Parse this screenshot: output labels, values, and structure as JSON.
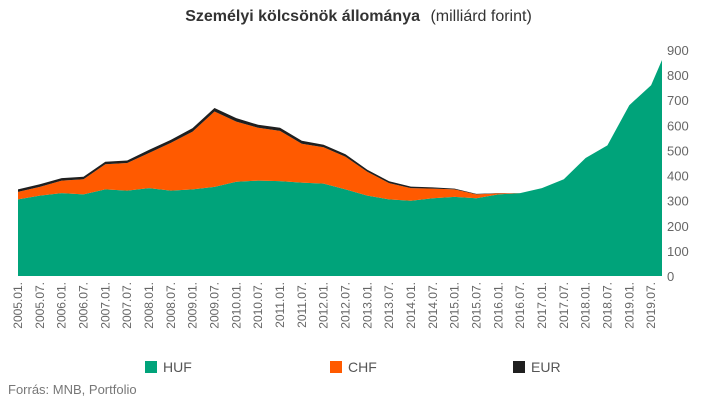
{
  "chart_data": {
    "type": "area",
    "stacked": true,
    "title": "Személyi kölcsönök állománya",
    "unit_label": "(milliárd forint)",
    "y_axis": {
      "position": "right",
      "min": 0,
      "max": 900,
      "ticks": [
        0,
        100,
        200,
        300,
        400,
        500,
        600,
        700,
        800,
        900
      ]
    },
    "x_axis": {
      "first": "2005.01",
      "last": "2019.10",
      "label_rotation": -90,
      "tick_labels": [
        "2005.01.",
        "2005.07.",
        "2006.01.",
        "2006.07.",
        "2007.01.",
        "2007.07.",
        "2008.01.",
        "2008.07.",
        "2009.01.",
        "2009.07.",
        "2010.01.",
        "2010.07.",
        "2011.01.",
        "2011.07.",
        "2012.01.",
        "2012.07.",
        "2013.01.",
        "2013.07.",
        "2014.01.",
        "2014.07.",
        "2015.01.",
        "2015.07.",
        "2016.01.",
        "2016.07.",
        "2017.01.",
        "2017.07.",
        "2018.01.",
        "2018.07.",
        "2019.01.",
        "2019.07."
      ]
    },
    "grid": false,
    "legend_placement": "bottom",
    "series": [
      {
        "name": "HUF",
        "color": "#00A37A",
        "points": [
          [
            "2005.01",
            305
          ],
          [
            "2005.07",
            320
          ],
          [
            "2006.01",
            330
          ],
          [
            "2006.07",
            325
          ],
          [
            "2007.01",
            345
          ],
          [
            "2007.07",
            340
          ],
          [
            "2008.01",
            350
          ],
          [
            "2008.07",
            340
          ],
          [
            "2009.01",
            345
          ],
          [
            "2009.07",
            355
          ],
          [
            "2010.01",
            375
          ],
          [
            "2010.07",
            380
          ],
          [
            "2011.01",
            378
          ],
          [
            "2011.07",
            372
          ],
          [
            "2012.01",
            368
          ],
          [
            "2012.07",
            345
          ],
          [
            "2013.01",
            320
          ],
          [
            "2013.07",
            305
          ],
          [
            "2014.01",
            300
          ],
          [
            "2014.07",
            310
          ],
          [
            "2015.01",
            315
          ],
          [
            "2015.07",
            310
          ],
          [
            "2016.01",
            325
          ],
          [
            "2016.07",
            330
          ],
          [
            "2017.01",
            350
          ],
          [
            "2017.07",
            385
          ],
          [
            "2018.01",
            470
          ],
          [
            "2018.07",
            520
          ],
          [
            "2019.01",
            680
          ],
          [
            "2019.07",
            760
          ],
          [
            "2019.10",
            860
          ]
        ]
      },
      {
        "name": "CHF",
        "color": "#FF5A00",
        "points": [
          [
            "2005.01",
            30
          ],
          [
            "2005.07",
            35
          ],
          [
            "2006.01",
            50
          ],
          [
            "2006.07",
            60
          ],
          [
            "2007.01",
            100
          ],
          [
            "2007.07",
            110
          ],
          [
            "2008.01",
            140
          ],
          [
            "2008.07",
            190
          ],
          [
            "2009.01",
            230
          ],
          [
            "2009.07",
            300
          ],
          [
            "2010.01",
            240
          ],
          [
            "2010.07",
            210
          ],
          [
            "2011.01",
            200
          ],
          [
            "2011.07",
            155
          ],
          [
            "2012.01",
            145
          ],
          [
            "2012.07",
            130
          ],
          [
            "2013.01",
            95
          ],
          [
            "2013.07",
            65
          ],
          [
            "2014.01",
            50
          ],
          [
            "2014.07",
            38
          ],
          [
            "2015.01",
            30
          ],
          [
            "2015.07",
            15
          ],
          [
            "2016.01",
            4
          ],
          [
            "2016.07",
            0
          ],
          [
            "2017.01",
            0
          ],
          [
            "2017.07",
            0
          ],
          [
            "2018.01",
            0
          ],
          [
            "2018.07",
            0
          ],
          [
            "2019.01",
            0
          ],
          [
            "2019.07",
            0
          ],
          [
            "2019.10",
            0
          ]
        ]
      },
      {
        "name": "EUR",
        "color": "#1F1F1F",
        "points": [
          [
            "2005.01",
            10
          ],
          [
            "2005.07",
            10
          ],
          [
            "2006.01",
            10
          ],
          [
            "2006.07",
            10
          ],
          [
            "2007.01",
            10
          ],
          [
            "2007.07",
            10
          ],
          [
            "2008.01",
            12
          ],
          [
            "2008.07",
            12
          ],
          [
            "2009.01",
            14
          ],
          [
            "2009.07",
            14
          ],
          [
            "2010.01",
            14
          ],
          [
            "2010.07",
            12
          ],
          [
            "2011.01",
            12
          ],
          [
            "2011.07",
            12
          ],
          [
            "2012.01",
            10
          ],
          [
            "2012.07",
            10
          ],
          [
            "2013.01",
            8
          ],
          [
            "2013.07",
            7
          ],
          [
            "2014.01",
            6
          ],
          [
            "2014.07",
            5
          ],
          [
            "2015.01",
            3
          ],
          [
            "2015.07",
            2
          ],
          [
            "2016.01",
            1
          ],
          [
            "2016.07",
            0
          ],
          [
            "2017.01",
            0
          ],
          [
            "2017.07",
            0
          ],
          [
            "2018.01",
            0
          ],
          [
            "2018.07",
            0
          ],
          [
            "2019.01",
            0
          ],
          [
            "2019.07",
            0
          ],
          [
            "2019.10",
            0
          ]
        ]
      }
    ],
    "source": "Forrás: MNB, Portfolio"
  }
}
